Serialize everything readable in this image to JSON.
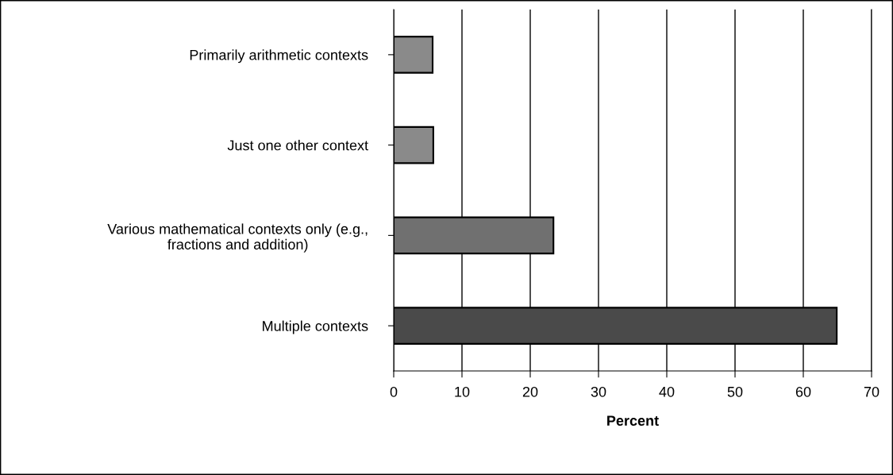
{
  "chart_data": {
    "type": "bar",
    "orientation": "horizontal",
    "xlabel": "Percent",
    "categories": [
      "Primarily arithmetic contexts",
      "Just one other context",
      "Various mathematical contexts only (e.g.,\nfractions and addition)",
      "Multiple contexts"
    ],
    "values": [
      5.7,
      5.8,
      23.4,
      64.9
    ],
    "colors": [
      "#8a8a8a",
      "#8a8a8a",
      "#707070",
      "#4a4a4a"
    ],
    "xlim": [
      0,
      70
    ],
    "xticks": [
      0,
      10,
      20,
      30,
      40,
      50,
      60,
      70
    ],
    "grid": "x"
  }
}
